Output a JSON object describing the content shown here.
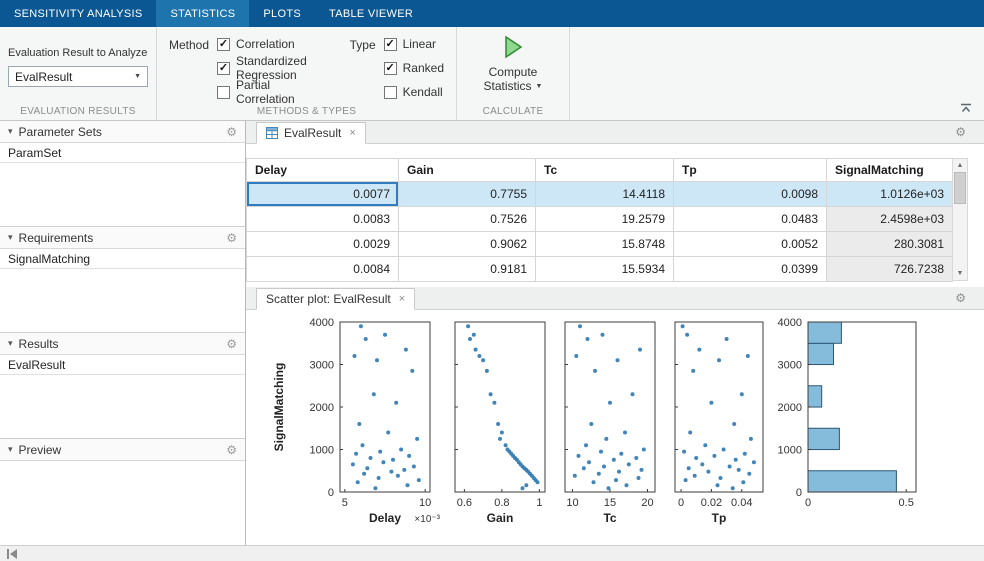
{
  "ui": {
    "close": "×",
    "caret": "▼",
    "check": "✓",
    "gear": "⚙",
    "tri_down": "▾",
    "scroll_up": "▲",
    "scroll_down": "▼"
  },
  "colors": {
    "header_bg": "#0a5794",
    "header_active_bg": "#1e75ad",
    "selected_row_bg": "#cde7f7",
    "selected_cell_border": "#2f7dbe",
    "scatter_point": "#2e78b0",
    "hist_fill": "#85bbdb",
    "hist_edge": "#2b5876",
    "axes_edge": "#3c3c3c"
  },
  "ribbon": {
    "tabs": [
      {
        "label": "SENSITIVITY ANALYSIS",
        "active": false
      },
      {
        "label": "STATISTICS",
        "active": true
      },
      {
        "label": "PLOTS",
        "active": false
      },
      {
        "label": "TABLE VIEWER",
        "active": false
      }
    ]
  },
  "toolbar": {
    "evaluation": {
      "label": "Evaluation Result to Analyze",
      "dropdown_value": "EvalResult",
      "section_label": "EVALUATION RESULTS"
    },
    "methods": {
      "method_label": "Method",
      "method_options": [
        {
          "label": "Correlation",
          "checked": true
        },
        {
          "label": "Standardized Regression",
          "checked": true
        },
        {
          "label": "Partial Correlation",
          "checked": false
        }
      ],
      "type_label": "Type",
      "type_options": [
        {
          "label": "Linear",
          "checked": true
        },
        {
          "label": "Ranked",
          "checked": true
        },
        {
          "label": "Kendall",
          "checked": false
        }
      ],
      "section_label": "METHODS & TYPES"
    },
    "calculate": {
      "button_line1": "Compute",
      "button_line2": "Statistics",
      "section_label": "CALCULATE"
    }
  },
  "sidebar": {
    "panels": [
      {
        "title": "Parameter Sets",
        "items": [
          "ParamSet"
        ]
      },
      {
        "title": "Requirements",
        "items": [
          "SignalMatching"
        ]
      },
      {
        "title": "Results",
        "items": [
          "EvalResult"
        ]
      },
      {
        "title": "Preview",
        "items": []
      }
    ]
  },
  "table_view": {
    "tab_label": "EvalResult",
    "columns": [
      "Delay",
      "Gain",
      "Tc",
      "Tp",
      "SignalMatching"
    ],
    "rows": [
      [
        "0.0077",
        "0.7755",
        "14.4118",
        "0.0098",
        "1.0126e+03"
      ],
      [
        "0.0083",
        "0.7526",
        "19.2579",
        "0.0483",
        "2.4598e+03"
      ],
      [
        "0.0029",
        "0.9062",
        "15.8748",
        "0.0052",
        "280.3081"
      ],
      [
        "0.0084",
        "0.9181",
        "15.5934",
        "0.0399",
        "726.7238"
      ]
    ],
    "selected_row": 0
  },
  "plot_view": {
    "tab_label": "Scatter plot: EvalResult"
  },
  "chart_data": {
    "type": "scatter",
    "title": "Scatter plot: EvalResult",
    "ylabel": "SignalMatching",
    "ylim": [
      0,
      4000
    ],
    "yticks": [
      "0",
      "1000",
      "2000",
      "3000",
      "4000"
    ],
    "signal_matching": [
      3900,
      3700,
      3600,
      3350,
      3200,
      3100,
      2850,
      2300,
      2100,
      1600,
      1400,
      1250,
      1100,
      1000,
      950,
      900,
      850,
      800,
      760,
      700,
      650,
      600,
      560,
      520,
      480,
      430,
      380,
      330,
      280,
      230,
      160,
      90
    ],
    "panels": [
      {
        "xlabel": "Delay",
        "scale_label": "×10⁻³",
        "xlim": [
          4.7,
          10.3
        ],
        "xticks": [
          5,
          10
        ],
        "xtick_labels": [
          "5",
          "10"
        ],
        "x": [
          6.0,
          7.5,
          6.3,
          8.8,
          5.6,
          7.0,
          9.2,
          6.8,
          8.2,
          5.9,
          7.7,
          9.5,
          6.1,
          8.5,
          7.2,
          5.7,
          9.0,
          6.6,
          8.0,
          7.4,
          5.5,
          9.3,
          6.4,
          8.7,
          7.9,
          6.2,
          8.3,
          7.1,
          9.6,
          5.8,
          8.9,
          6.9
        ]
      },
      {
        "xlabel": "Gain",
        "xlim": [
          0.55,
          1.03
        ],
        "xticks": [
          0.6,
          0.8,
          1
        ],
        "xtick_labels": [
          "0.6",
          "0.8",
          "1"
        ],
        "x": [
          0.62,
          0.65,
          0.63,
          0.66,
          0.68,
          0.7,
          0.72,
          0.74,
          0.76,
          0.78,
          0.8,
          0.79,
          0.82,
          0.83,
          0.84,
          0.85,
          0.86,
          0.87,
          0.88,
          0.89,
          0.9,
          0.91,
          0.92,
          0.93,
          0.94,
          0.95,
          0.96,
          0.97,
          0.98,
          0.99,
          0.93,
          0.91
        ]
      },
      {
        "xlabel": "Tc",
        "xlim": [
          9,
          21
        ],
        "xticks": [
          10,
          15,
          20
        ],
        "xtick_labels": [
          "10",
          "15",
          "20"
        ],
        "x": [
          11,
          14,
          12,
          19,
          10.5,
          16,
          13,
          18,
          15,
          12.5,
          17,
          14.5,
          11.8,
          19.5,
          13.8,
          16.5,
          10.8,
          18.5,
          15.5,
          12.2,
          17.5,
          14.2,
          11.5,
          19.2,
          16.2,
          13.5,
          10.3,
          18.8,
          15.8,
          12.8,
          17.2,
          14.8
        ]
      },
      {
        "xlabel": "Tp",
        "xlim": [
          -0.004,
          0.054
        ],
        "xticks": [
          0,
          0.02,
          0.04
        ],
        "xtick_labels": [
          "0",
          "0.02",
          "0.04"
        ],
        "x": [
          0.001,
          0.004,
          0.03,
          0.012,
          0.044,
          0.025,
          0.008,
          0.04,
          0.02,
          0.035,
          0.006,
          0.046,
          0.016,
          0.028,
          0.002,
          0.042,
          0.022,
          0.01,
          0.036,
          0.048,
          0.014,
          0.032,
          0.005,
          0.038,
          0.018,
          0.045,
          0.009,
          0.026,
          0.003,
          0.041,
          0.024,
          0.034
        ]
      }
    ],
    "histogram": {
      "orientation": "horizontal",
      "xlim": [
        0,
        0.55
      ],
      "xticks": [
        0,
        0.5
      ],
      "xtick_labels": [
        "0",
        "0.5"
      ],
      "bins": [
        {
          "from": 0,
          "to": 500,
          "value": 0.45
        },
        {
          "from": 1000,
          "to": 1500,
          "value": 0.16
        },
        {
          "from": 2000,
          "to": 2500,
          "value": 0.07
        },
        {
          "from": 3000,
          "to": 3500,
          "value": 0.13
        },
        {
          "from": 3500,
          "to": 4000,
          "value": 0.17
        }
      ]
    }
  }
}
